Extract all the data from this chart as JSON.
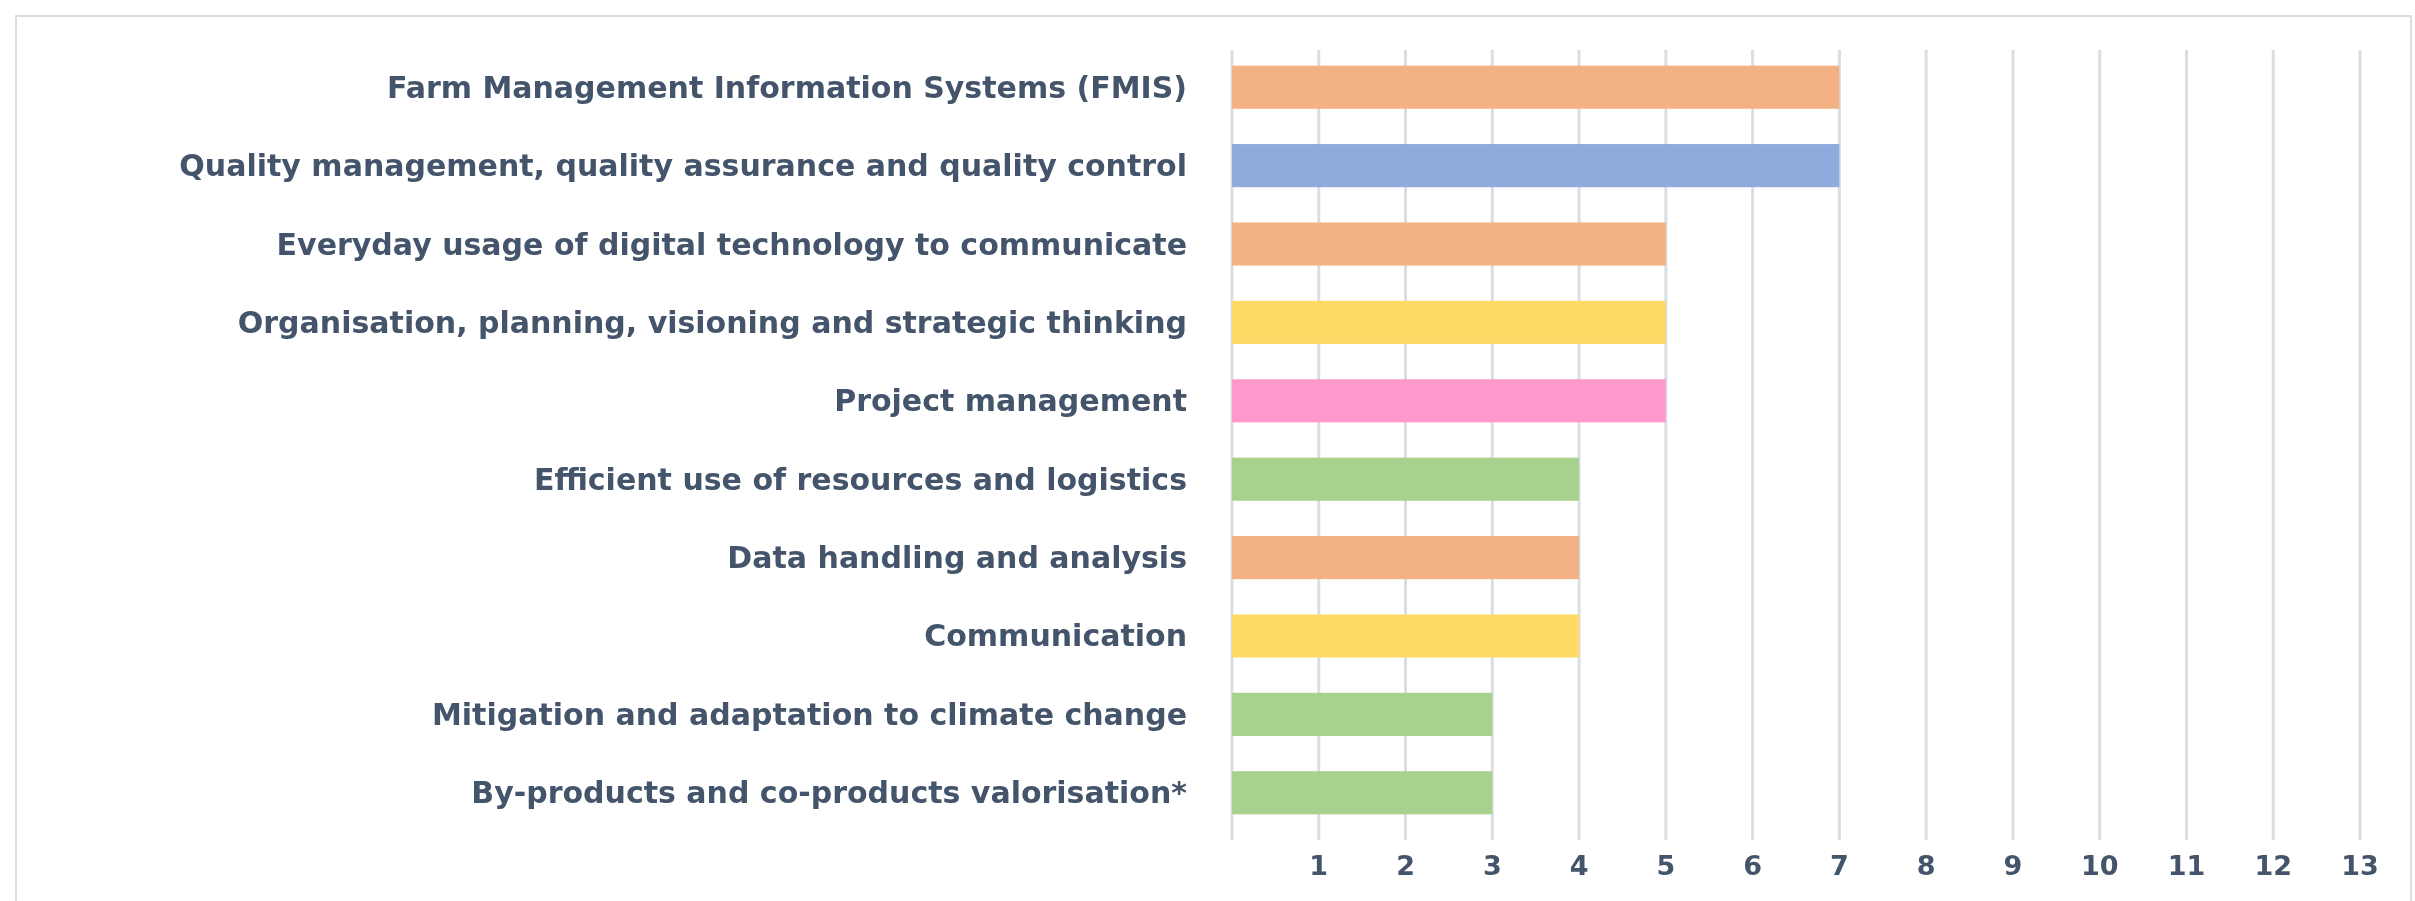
{
  "chart_data": {
    "type": "bar",
    "orientation": "horizontal",
    "categories": [
      "Farm Management Information Systems (FMIS)",
      "Quality management, quality assurance and quality control",
      "Everyday usage of digital technology to communicate",
      "Organisation, planning, visioning and strategic thinking",
      "Project management",
      "Efficient use of resources and logistics",
      "Data handling and analysis",
      "Communication",
      "Mitigation and adaptation to climate change",
      "By-products and co-products valorisation*"
    ],
    "values": [
      7,
      7,
      5,
      5,
      5,
      4,
      4,
      4,
      3,
      3
    ],
    "colors": [
      "#f4b183",
      "#8faadc",
      "#f4b183",
      "#ffd966",
      "#ff99cc",
      "#a9d18e",
      "#f4b183",
      "#ffd966",
      "#a9d18e",
      "#a9d18e"
    ],
    "xlim": [
      0,
      13
    ],
    "xticks": [
      {
        "value": 0,
        "label": null
      },
      1,
      2,
      3,
      4,
      5,
      6,
      7,
      8,
      9,
      10,
      11,
      12,
      13
    ],
    "grid": "x"
  }
}
